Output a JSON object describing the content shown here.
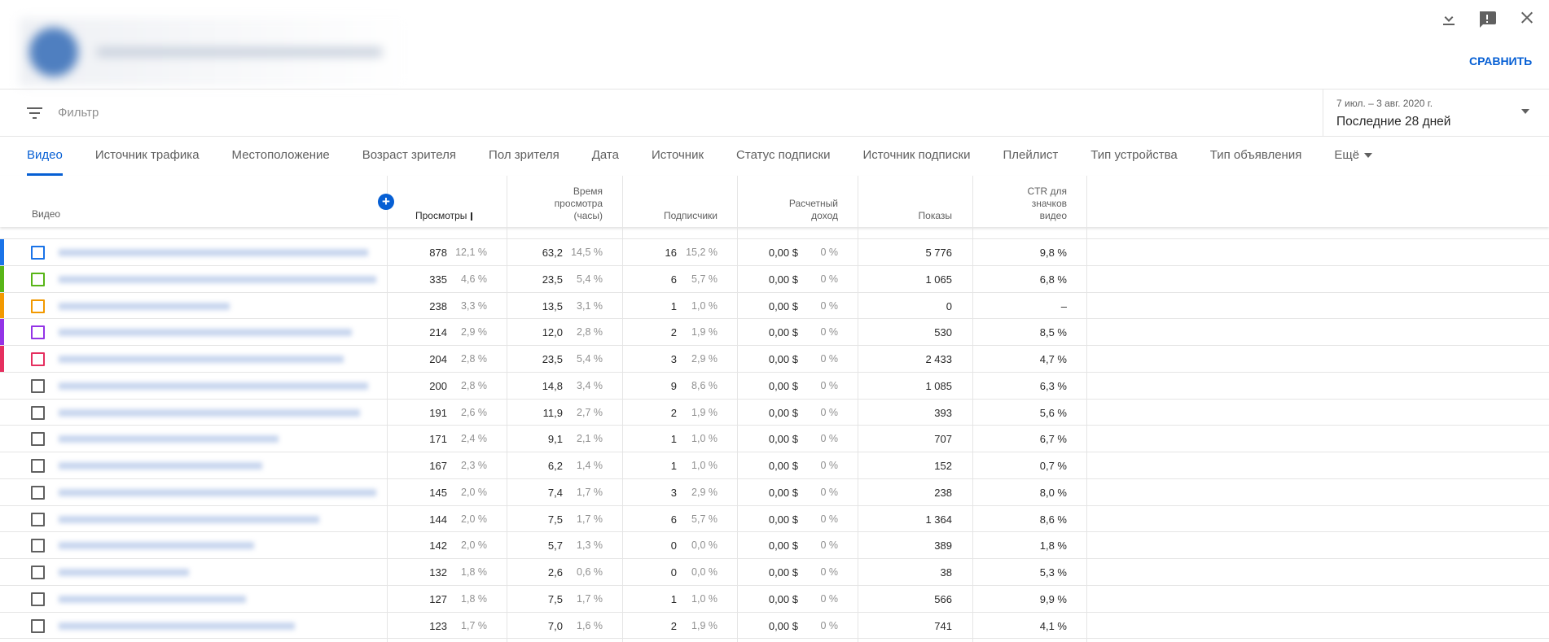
{
  "header": {
    "compare": "СРАВНИТЬ",
    "filter": "Фильтр",
    "date_range": "7 июл. – 3 авг. 2020 г.",
    "period": "Последние 28 дней"
  },
  "tabs": [
    "Видео",
    "Источник трафика",
    "Местоположение",
    "Возраст зрителя",
    "Пол зрителя",
    "Дата",
    "Источник",
    "Статус подписки",
    "Источник подписки",
    "Плейлист",
    "Тип устройства",
    "Тип объявления",
    "Ещё"
  ],
  "table": {
    "columns": [
      "Видео",
      "Просмотры",
      "Время просмотра (часы)",
      "Подписчики",
      "Расчетный доход",
      "Показы",
      "CTR для значков видео"
    ],
    "rows": [
      {
        "color": "#1a73e8",
        "cells": [
          "878",
          "12,1 %",
          "63,2",
          "14,5 %",
          "16",
          "15,2 %",
          "0,00 $",
          "0 %",
          "5 776",
          "9,8 %"
        ]
      },
      {
        "color": "#58b517",
        "cells": [
          "335",
          "4,6 %",
          "23,5",
          "5,4 %",
          "6",
          "5,7 %",
          "0,00 $",
          "0 %",
          "1 065",
          "6,8 %"
        ]
      },
      {
        "color": "#f29900",
        "cells": [
          "238",
          "3,3 %",
          "13,5",
          "3,1 %",
          "1",
          "1,0 %",
          "0,00 $",
          "0 %",
          "0",
          "–"
        ]
      },
      {
        "color": "#9334e6",
        "cells": [
          "214",
          "2,9 %",
          "12,0",
          "2,8 %",
          "2",
          "1,9 %",
          "0,00 $",
          "0 %",
          "530",
          "8,5 %"
        ]
      },
      {
        "color": "#e52f5f",
        "cells": [
          "204",
          "2,8 %",
          "23,5",
          "5,4 %",
          "3",
          "2,9 %",
          "0,00 $",
          "0 %",
          "2 433",
          "4,7 %"
        ]
      },
      {
        "cells": [
          "200",
          "2,8 %",
          "14,8",
          "3,4 %",
          "9",
          "8,6 %",
          "0,00 $",
          "0 %",
          "1 085",
          "6,3 %"
        ]
      },
      {
        "cells": [
          "191",
          "2,6 %",
          "11,9",
          "2,7 %",
          "2",
          "1,9 %",
          "0,00 $",
          "0 %",
          "393",
          "5,6 %"
        ]
      },
      {
        "cells": [
          "171",
          "2,4 %",
          "9,1",
          "2,1 %",
          "1",
          "1,0 %",
          "0,00 $",
          "0 %",
          "707",
          "6,7 %"
        ]
      },
      {
        "cells": [
          "167",
          "2,3 %",
          "6,2",
          "1,4 %",
          "1",
          "1,0 %",
          "0,00 $",
          "0 %",
          "152",
          "0,7 %"
        ]
      },
      {
        "cells": [
          "145",
          "2,0 %",
          "7,4",
          "1,7 %",
          "3",
          "2,9 %",
          "0,00 $",
          "0 %",
          "238",
          "8,0 %"
        ]
      },
      {
        "cells": [
          "144",
          "2,0 %",
          "7,5",
          "1,7 %",
          "6",
          "5,7 %",
          "0,00 $",
          "0 %",
          "1 364",
          "8,6 %"
        ]
      },
      {
        "cells": [
          "142",
          "2,0 %",
          "5,7",
          "1,3 %",
          "0",
          "0,0 %",
          "0,00 $",
          "0 %",
          "389",
          "1,8 %"
        ]
      },
      {
        "cells": [
          "132",
          "1,8 %",
          "2,6",
          "0,6 %",
          "0",
          "0,0 %",
          "0,00 $",
          "0 %",
          "38",
          "5,3 %"
        ]
      },
      {
        "cells": [
          "127",
          "1,8 %",
          "7,5",
          "1,7 %",
          "1",
          "1,0 %",
          "0,00 $",
          "0 %",
          "566",
          "9,9 %"
        ]
      },
      {
        "cells": [
          "123",
          "1,7 %",
          "7,0",
          "1,6 %",
          "2",
          "1,9 %",
          "0,00 $",
          "0 %",
          "741",
          "4,1 %"
        ]
      }
    ]
  }
}
